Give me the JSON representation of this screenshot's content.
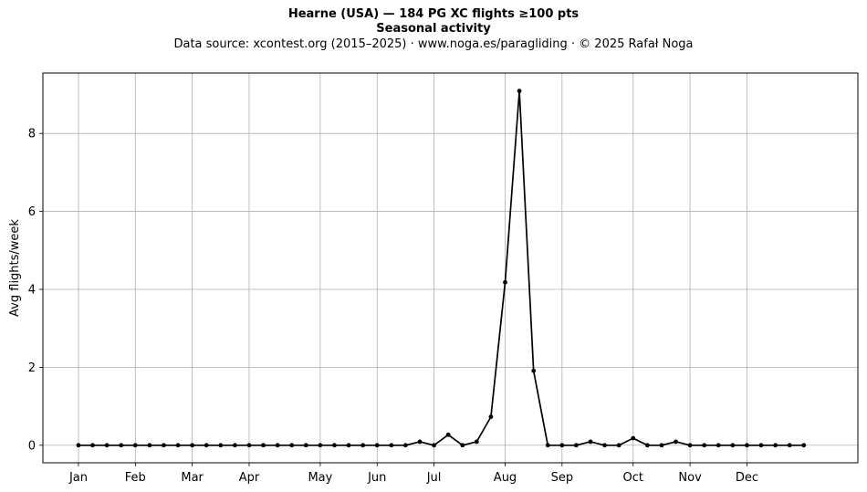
{
  "chart_data": {
    "type": "line",
    "title": "Hearne (USA)  —  184 PG XC flights ≥100 pts",
    "subtitle": "Seasonal activity",
    "source": "Data source: xcontest.org (2015–2025)  ·  www.noga.es/paragliding  ·  © 2025 Rafał Noga",
    "xlabel": "",
    "ylabel": "Avg flights/week",
    "ylim": [
      -0.45,
      9.55
    ],
    "xlim": [
      -2.5,
      54.8
    ],
    "grid": true,
    "yticks": [
      0,
      2,
      4,
      6,
      8
    ],
    "month_ticks": [
      {
        "label": "Jan",
        "x": 0
      },
      {
        "label": "Feb",
        "x": 4
      },
      {
        "label": "Mar",
        "x": 8
      },
      {
        "label": "Apr",
        "x": 12
      },
      {
        "label": "May",
        "x": 17
      },
      {
        "label": "Jun",
        "x": 21
      },
      {
        "label": "Jul",
        "x": 25
      },
      {
        "label": "Aug",
        "x": 30
      },
      {
        "label": "Sep",
        "x": 34
      },
      {
        "label": "Oct",
        "x": 39
      },
      {
        "label": "Nov",
        "x": 43
      },
      {
        "label": "Dec",
        "x": 47
      }
    ],
    "color": "#000000",
    "grid_color": "#b0b0b0",
    "series": [
      {
        "x": [
          0,
          1,
          2,
          3,
          4,
          5,
          6,
          7,
          8,
          9,
          10,
          11,
          12,
          13,
          14,
          15,
          16,
          17,
          18,
          19,
          20,
          21,
          22,
          23,
          24,
          25,
          26,
          27,
          28,
          29,
          30,
          31,
          32,
          33,
          34,
          35,
          36,
          37,
          38,
          39,
          40,
          41,
          42,
          43,
          44,
          45,
          46,
          47,
          48,
          49,
          50,
          51
        ],
        "values": [
          0,
          0,
          0,
          0,
          0,
          0,
          0,
          0,
          0,
          0,
          0,
          0,
          0,
          0,
          0,
          0,
          0,
          0,
          0,
          0,
          0,
          0,
          0,
          0,
          0.09,
          0,
          0.27,
          0,
          0.09,
          0.73,
          4.18,
          9.09,
          1.91,
          0,
          0,
          0,
          0.09,
          0,
          0,
          0.18,
          0,
          0,
          0.09,
          0,
          0,
          0,
          0,
          0,
          0,
          0,
          0,
          0
        ]
      }
    ]
  }
}
